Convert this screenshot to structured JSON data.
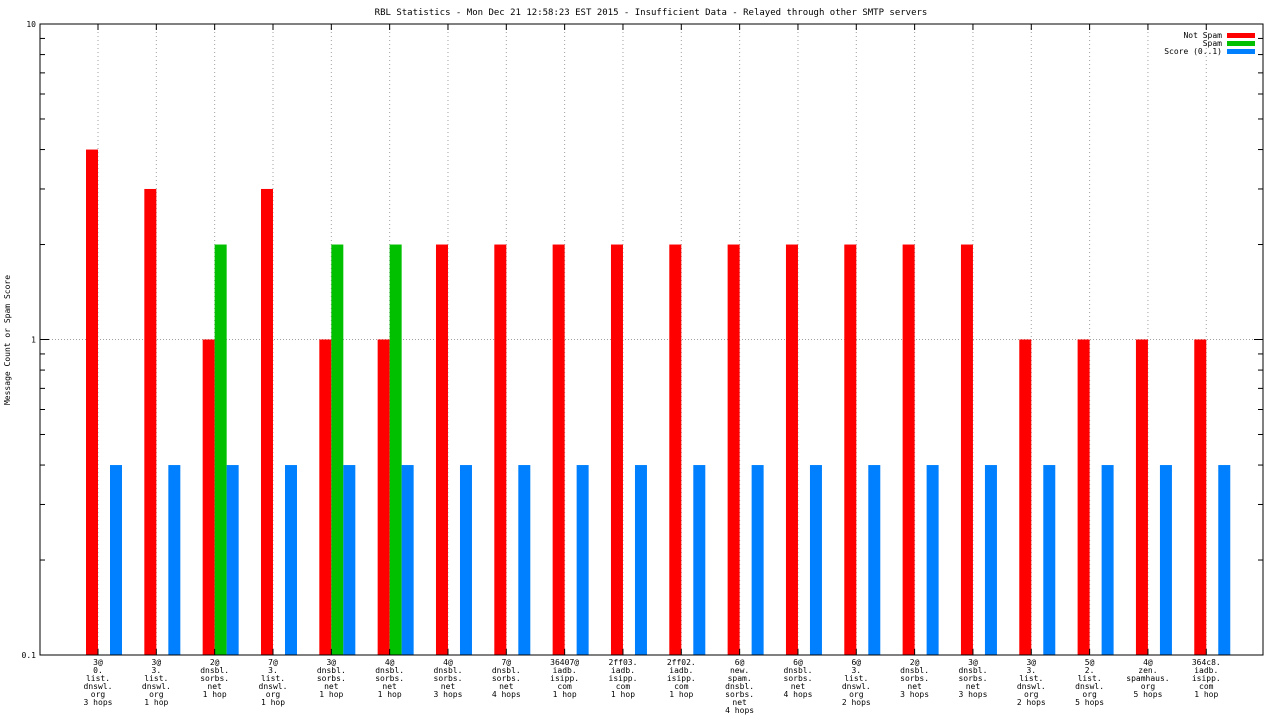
{
  "chart_data": {
    "type": "bar",
    "title": "RBL Statistics - Mon Dec 21 12:58:23 EST 2015 - Insufficient Data - Relayed through other SMTP servers",
    "ylabel": "Message Count or Spam Score",
    "xlabel": "",
    "yscale": "log",
    "ylim": [
      0.1,
      10
    ],
    "yticks": [
      "0.1",
      "1",
      "10"
    ],
    "grid": "on",
    "legend_position": "top-right",
    "categories": [
      [
        "3@",
        "0.",
        "list.",
        "dnswl.",
        "org",
        "3 hops"
      ],
      [
        "3@",
        "3.",
        "list.",
        "dnswl.",
        "org",
        "1 hop"
      ],
      [
        "2@",
        "dnsbl.",
        "sorbs.",
        "net",
        "1 hop"
      ],
      [
        "7@",
        "3.",
        "list.",
        "dnswl.",
        "org",
        "1 hop"
      ],
      [
        "3@",
        "dnsbl.",
        "sorbs.",
        "net",
        "1 hop"
      ],
      [
        "4@",
        "dnsbl.",
        "sorbs.",
        "net",
        "1 hop"
      ],
      [
        "4@",
        "dnsbl.",
        "sorbs.",
        "net",
        "3 hops"
      ],
      [
        "7@",
        "dnsbl.",
        "sorbs.",
        "net",
        "4 hops"
      ],
      [
        "36407@",
        "iadb.",
        "isipp.",
        "com",
        "1 hop"
      ],
      [
        "2ff03.",
        "iadb.",
        "isipp.",
        "com",
        "1 hop"
      ],
      [
        "2ff02.",
        "iadb.",
        "isipp.",
        "com",
        "1 hop"
      ],
      [
        "6@",
        "new.",
        "spam.",
        "dnsbl.",
        "sorbs.",
        "net",
        "4 hops"
      ],
      [
        "6@",
        "dnsbl.",
        "sorbs.",
        "net",
        "4 hops"
      ],
      [
        "6@",
        "3.",
        "list.",
        "dnswl.",
        "org",
        "2 hops"
      ],
      [
        "2@",
        "dnsbl.",
        "sorbs.",
        "net",
        "3 hops"
      ],
      [
        "3@",
        "dnsbl.",
        "sorbs.",
        "net",
        "3 hops"
      ],
      [
        "3@",
        "3.",
        "list.",
        "dnswl.",
        "org",
        "2 hops"
      ],
      [
        "5@",
        "2.",
        "list.",
        "dnswl.",
        "org",
        "5 hops"
      ],
      [
        "4@",
        "zen.",
        "spamhaus.",
        "org",
        "5 hops"
      ],
      [
        "364c8.",
        "iadb.",
        "isipp.",
        "com",
        "1 hop"
      ]
    ],
    "series": [
      {
        "name": "Not Spam",
        "color": "#ff0000",
        "values": [
          4,
          3,
          1,
          3,
          1,
          1,
          2,
          2,
          2,
          2,
          2,
          2,
          2,
          2,
          2,
          2,
          1,
          1,
          1,
          1
        ]
      },
      {
        "name": "Spam",
        "color": "#00c000",
        "values": [
          0,
          0,
          2,
          0,
          2,
          2,
          0,
          0,
          0,
          0,
          0,
          0,
          0,
          0,
          0,
          0,
          0,
          0,
          0,
          0
        ]
      },
      {
        "name": "Score (0..1)",
        "color": "#0080ff",
        "values": [
          0.4,
          0.4,
          0.4,
          0.4,
          0.4,
          0.4,
          0.4,
          0.4,
          0.4,
          0.4,
          0.4,
          0.4,
          0.4,
          0.4,
          0.4,
          0.4,
          0.4,
          0.4,
          0.4,
          0.4
        ]
      }
    ]
  }
}
